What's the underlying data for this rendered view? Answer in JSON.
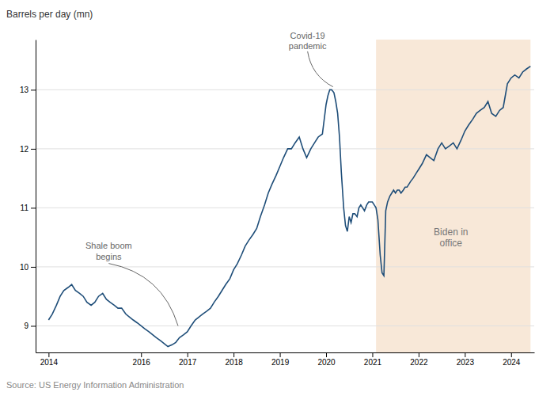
{
  "chart_data": {
    "type": "line",
    "ylabel": "Barrels per day (mn)",
    "source": "Source: US Energy Information Administration",
    "color": "#1f4e79",
    "grid": true,
    "xlim": [
      2013.72,
      2024.5
    ],
    "xticks": [
      2014,
      2016,
      2017,
      2018,
      2019,
      2020,
      2021,
      2022,
      2023,
      2024
    ],
    "ylim": [
      8.55,
      13.85
    ],
    "yticks": [
      9,
      10,
      11,
      12,
      13
    ],
    "spans": [
      {
        "start": 2021.08,
        "end": 2024.42,
        "color": "#f8e8d8",
        "label": "Biden in\noffice",
        "label_x": 2022.7,
        "label_y": 10.5
      }
    ],
    "annotations": [
      {
        "text": "Covid-19\npandemic",
        "x": 2020.15,
        "y": 13.05,
        "text_x": 2019.6,
        "text_y": 13.65
      },
      {
        "text": "Shale boom\nbegins",
        "x": 2016.8,
        "y": 9.0,
        "text_x": 2015.3,
        "text_y": 10.45
      }
    ],
    "x": [
      2014.0,
      2014.08,
      2014.17,
      2014.25,
      2014.33,
      2014.42,
      2014.5,
      2014.58,
      2014.67,
      2014.75,
      2014.83,
      2014.92,
      2015.0,
      2015.08,
      2015.17,
      2015.25,
      2015.33,
      2015.42,
      2015.5,
      2015.58,
      2015.67,
      2015.75,
      2015.83,
      2015.92,
      2016.0,
      2016.08,
      2016.17,
      2016.25,
      2016.33,
      2016.42,
      2016.5,
      2016.58,
      2016.67,
      2016.75,
      2016.83,
      2016.92,
      2017.0,
      2017.08,
      2017.17,
      2017.25,
      2017.33,
      2017.42,
      2017.5,
      2017.58,
      2017.67,
      2017.75,
      2017.83,
      2017.92,
      2018.0,
      2018.08,
      2018.17,
      2018.25,
      2018.33,
      2018.42,
      2018.5,
      2018.58,
      2018.67,
      2018.75,
      2018.83,
      2018.92,
      2019.0,
      2019.08,
      2019.17,
      2019.25,
      2019.33,
      2019.42,
      2019.5,
      2019.58,
      2019.67,
      2019.75,
      2019.83,
      2019.92,
      2020.0,
      2020.04,
      2020.08,
      2020.12,
      2020.17,
      2020.21,
      2020.25,
      2020.29,
      2020.33,
      2020.38,
      2020.42,
      2020.46,
      2020.5,
      2020.54,
      2020.58,
      2020.62,
      2020.67,
      2020.71,
      2020.75,
      2020.79,
      2020.83,
      2020.88,
      2020.92,
      2020.96,
      2021.0,
      2021.04,
      2021.08,
      2021.12,
      2021.17,
      2021.21,
      2021.25,
      2021.29,
      2021.33,
      2021.38,
      2021.42,
      2021.46,
      2021.5,
      2021.54,
      2021.58,
      2021.62,
      2021.67,
      2021.71,
      2021.75,
      2021.79,
      2021.83,
      2021.88,
      2021.92,
      2021.96,
      2022.0,
      2022.08,
      2022.17,
      2022.25,
      2022.33,
      2022.42,
      2022.5,
      2022.58,
      2022.67,
      2022.75,
      2022.83,
      2022.92,
      2023.0,
      2023.08,
      2023.17,
      2023.25,
      2023.33,
      2023.42,
      2023.5,
      2023.58,
      2023.67,
      2023.75,
      2023.83,
      2023.92,
      2024.0,
      2024.08,
      2024.17,
      2024.25,
      2024.33,
      2024.42
    ],
    "values": [
      9.1,
      9.2,
      9.35,
      9.5,
      9.6,
      9.65,
      9.7,
      9.6,
      9.55,
      9.5,
      9.4,
      9.35,
      9.4,
      9.5,
      9.55,
      9.45,
      9.4,
      9.35,
      9.3,
      9.3,
      9.2,
      9.15,
      9.1,
      9.05,
      9.0,
      8.95,
      8.9,
      8.85,
      8.8,
      8.75,
      8.7,
      8.65,
      8.68,
      8.72,
      8.8,
      8.85,
      8.9,
      9.0,
      9.1,
      9.15,
      9.2,
      9.25,
      9.3,
      9.4,
      9.5,
      9.6,
      9.7,
      9.8,
      9.95,
      10.05,
      10.2,
      10.35,
      10.45,
      10.55,
      10.65,
      10.85,
      11.05,
      11.25,
      11.4,
      11.55,
      11.7,
      11.85,
      12.0,
      12.0,
      12.1,
      12.2,
      12.0,
      11.85,
      12.0,
      12.1,
      12.2,
      12.25,
      12.75,
      12.9,
      13.0,
      13.0,
      12.95,
      12.8,
      12.6,
      12.2,
      11.6,
      11.0,
      10.7,
      10.6,
      10.85,
      10.75,
      10.9,
      10.9,
      10.85,
      11.0,
      11.05,
      11.0,
      10.95,
      11.05,
      11.1,
      11.1,
      11.1,
      11.05,
      11.0,
      10.8,
      10.2,
      9.9,
      9.85,
      10.95,
      11.1,
      11.2,
      11.25,
      11.3,
      11.25,
      11.3,
      11.3,
      11.25,
      11.3,
      11.35,
      11.35,
      11.4,
      11.45,
      11.5,
      11.55,
      11.6,
      11.65,
      11.75,
      11.9,
      11.85,
      11.8,
      12.0,
      12.1,
      12.0,
      12.05,
      12.1,
      12.0,
      12.15,
      12.3,
      12.4,
      12.5,
      12.6,
      12.65,
      12.7,
      12.8,
      12.6,
      12.55,
      12.65,
      12.7,
      13.1,
      13.2,
      13.25,
      13.2,
      13.3,
      13.35,
      13.4
    ]
  }
}
